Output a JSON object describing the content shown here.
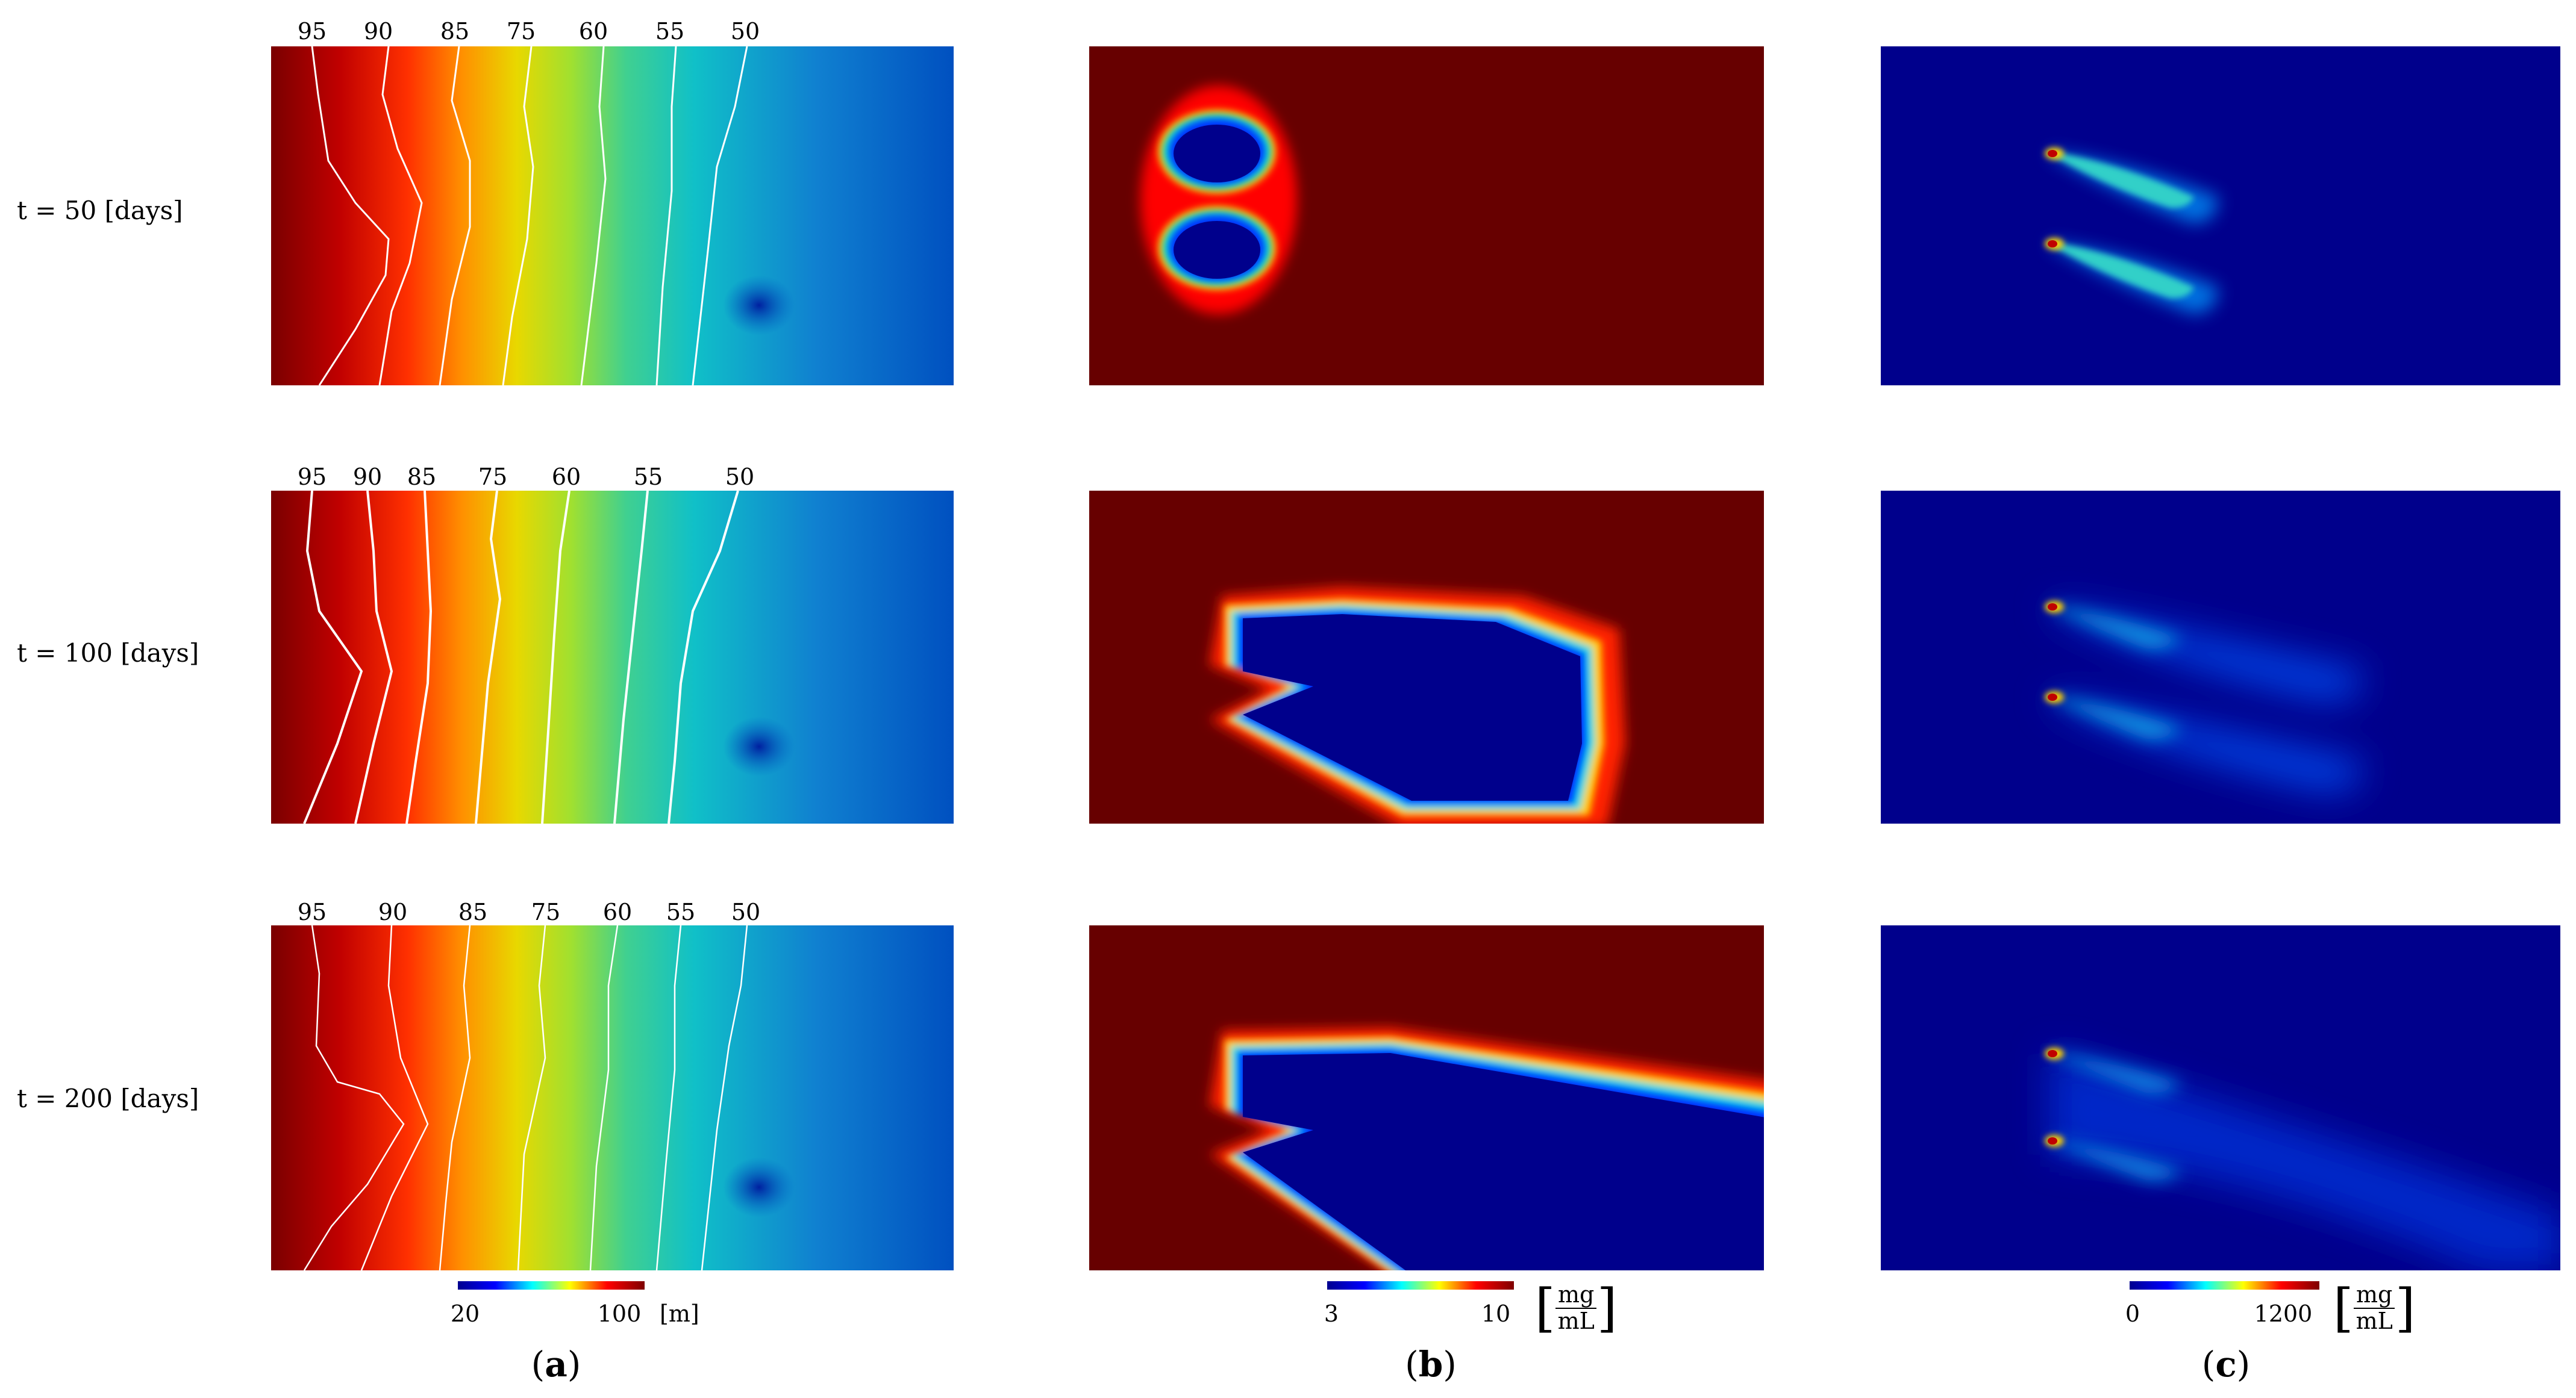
{
  "rows": [
    {
      "label": "t = 50 [days]"
    },
    {
      "label": "t = 100 [days]"
    },
    {
      "label": "t = 200 [days]"
    }
  ],
  "contours": [
    "95",
    "90",
    "85",
    "75",
    "60",
    "55",
    "50"
  ],
  "colorbars": {
    "a": {
      "min": "20",
      "max": "100",
      "unit": "[m]"
    },
    "b": {
      "min": "3",
      "max": "10",
      "unit_num": "mg",
      "unit_den": "mL"
    },
    "c": {
      "min": "0",
      "max": "1200",
      "unit_num": "mg",
      "unit_den": "mL"
    }
  },
  "columns": [
    {
      "open": "(",
      "letter": "a",
      "close": ")"
    },
    {
      "open": "(",
      "letter": "b",
      "close": ")"
    },
    {
      "open": "(",
      "letter": "c",
      "close": ")"
    }
  ],
  "colors": {
    "dark_red": "#670000",
    "dark_blue": "#00008c",
    "cyan": "#00c8c8"
  }
}
